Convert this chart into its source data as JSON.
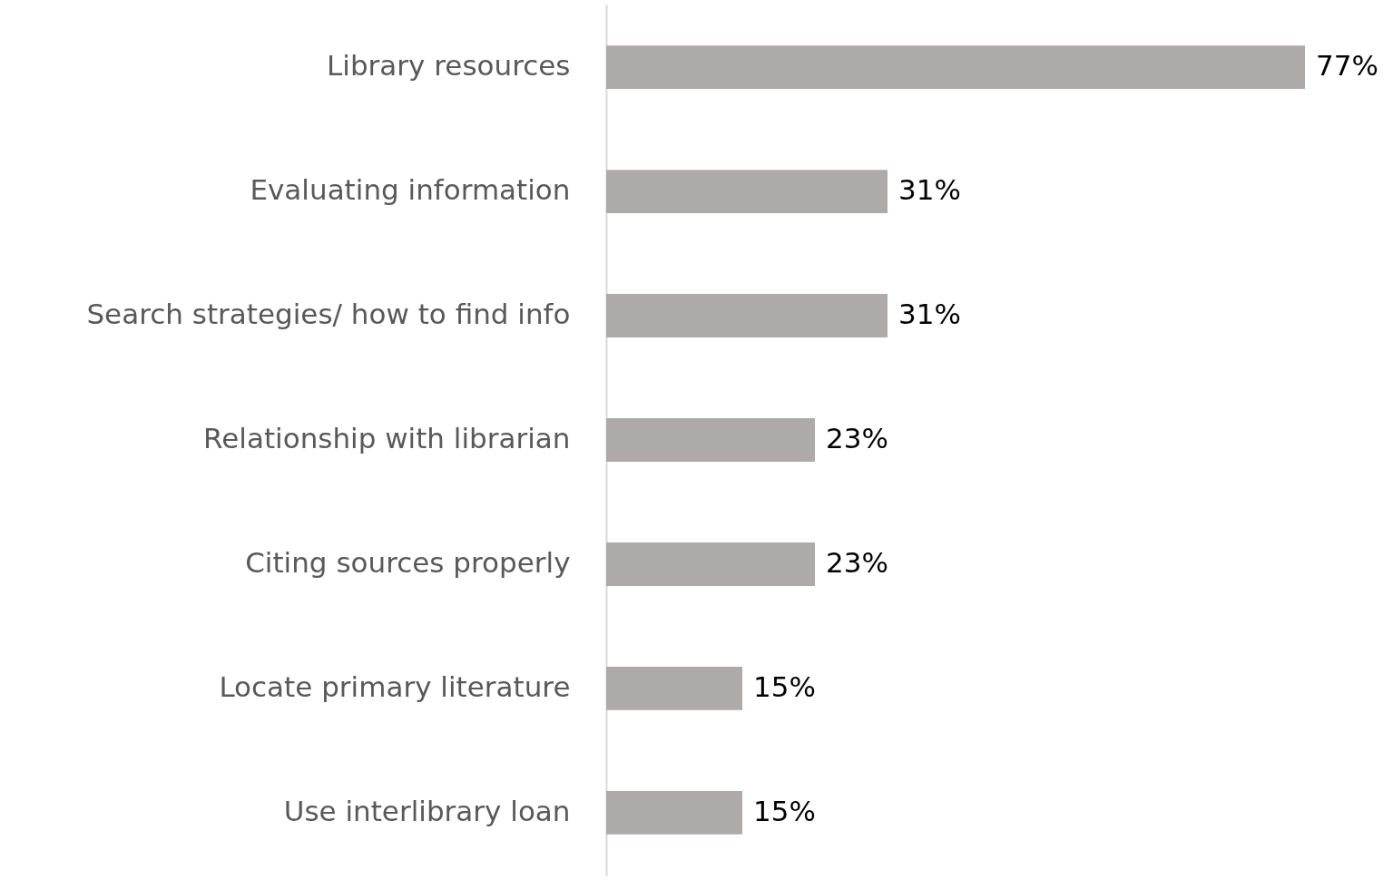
{
  "chart_data": {
    "type": "bar",
    "orientation": "horizontal",
    "categories": [
      "Library resources",
      "Evaluating information",
      "Search strategies/ how to find info",
      "Relationship with librarian",
      "Citing sources properly",
      "Locate primary literature",
      "Use interlibrary loan"
    ],
    "values": [
      77,
      31,
      31,
      23,
      23,
      15,
      15
    ],
    "value_labels": [
      "77%",
      "31%",
      "31%",
      "23%",
      "23%",
      "15%",
      "15%"
    ],
    "color": "#aeaaaa",
    "tick_labels": "y"
  }
}
